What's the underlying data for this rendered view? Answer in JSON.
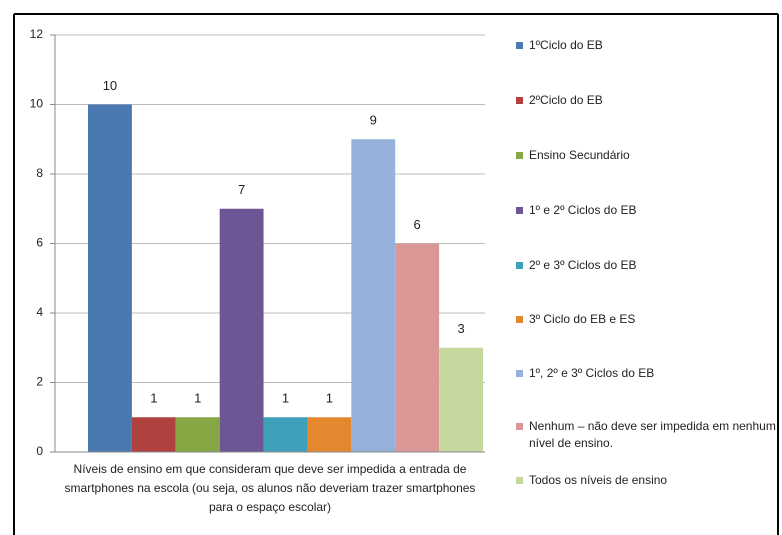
{
  "chart_data": {
    "type": "bar",
    "categories": [
      "Níveis de ensino em que consideram que deve ser impedida a entrada de smartphones na escola (ou seja, os alunos não deveriam trazer smartphones para o espaço escolar)"
    ],
    "series": [
      {
        "name": "1ºCiclo do EB",
        "color": "#4a78b0",
        "values": [
          10
        ]
      },
      {
        "name": "2ºCiclo do EB",
        "color": "#b0413e",
        "values": [
          1
        ]
      },
      {
        "name": "Ensino Secundário",
        "color": "#86a744",
        "values": [
          1
        ]
      },
      {
        "name": "1º e 2º Ciclos do EB",
        "color": "#6e5593",
        "values": [
          7
        ]
      },
      {
        "name": "2º e 3º Ciclos do EB",
        "color": "#3fa0ba",
        "values": [
          1
        ]
      },
      {
        "name": "3º Ciclo do EB e ES",
        "color": "#e3882f",
        "values": [
          1
        ]
      },
      {
        "name": "1º, 2º e 3º Ciclos do EB",
        "color": "#95b1dc",
        "values": [
          9
        ]
      },
      {
        "name": "Nenhum – não deve ser impedida em nenhum nível de ensino.",
        "color": "#d99796",
        "values": [
          6
        ]
      },
      {
        "name": "Todos os níveis de ensino",
        "color": "#c4d89e",
        "values": [
          3
        ]
      }
    ],
    "ylim": [
      0,
      12
    ],
    "yticks": [
      0,
      2,
      4,
      6,
      8,
      10,
      12
    ],
    "grid": true,
    "legend": "right"
  }
}
